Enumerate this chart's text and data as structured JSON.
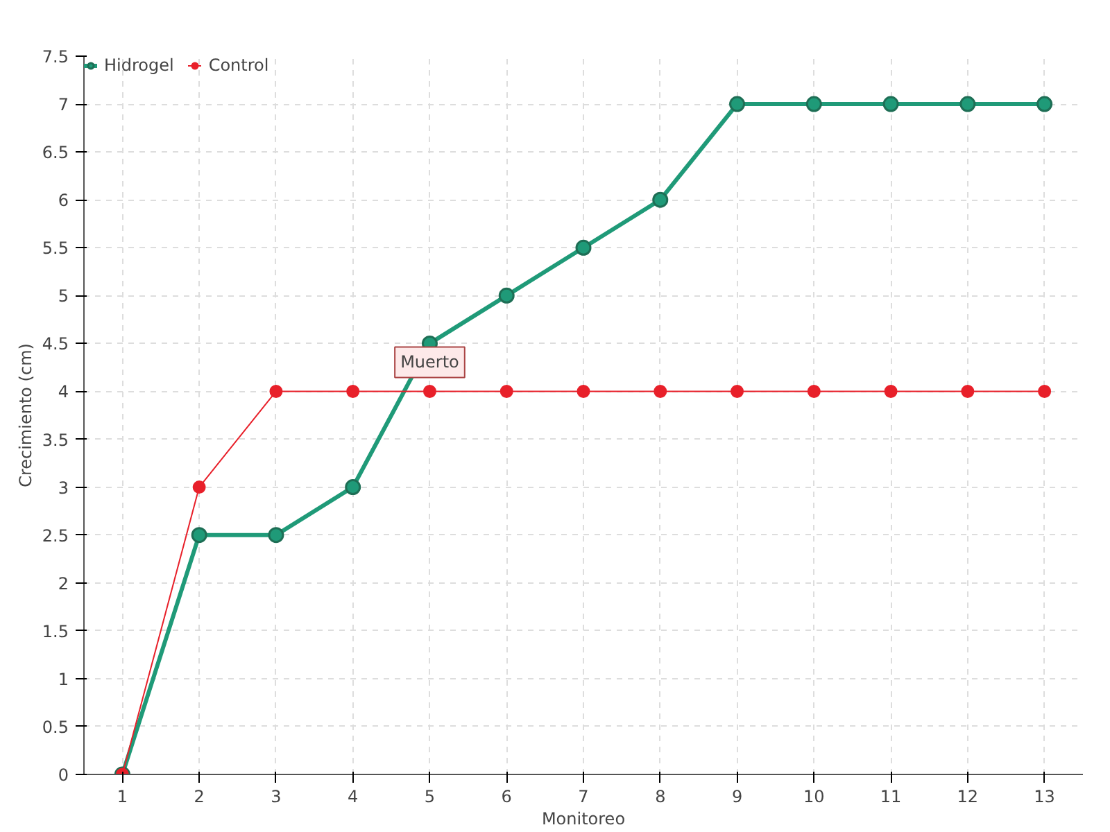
{
  "chart_data": {
    "type": "line",
    "xlabel": "Monitoreo",
    "ylabel": "Crecimiento (cm)",
    "x": [
      1,
      2,
      3,
      4,
      5,
      6,
      7,
      8,
      9,
      10,
      11,
      12,
      13
    ],
    "series": [
      {
        "name": "Hidrogel",
        "color": "#1f9a78",
        "values": [
          0,
          2.5,
          2.5,
          3,
          4.5,
          5,
          5.5,
          6,
          7,
          7,
          7,
          7,
          7
        ]
      },
      {
        "name": "Control",
        "color": "#e8202a",
        "values": [
          0,
          3,
          4,
          4,
          4,
          4,
          4,
          4,
          4,
          4,
          4,
          4,
          4
        ]
      }
    ],
    "xlim": [
      0.5,
      13.5
    ],
    "xticks": [
      1,
      2,
      3,
      4,
      5,
      6,
      7,
      8,
      9,
      10,
      11,
      12,
      13
    ],
    "ylim": [
      0,
      7.5
    ],
    "yticks": [
      0,
      0.5,
      1,
      1.5,
      2,
      2.5,
      3,
      3.5,
      4,
      4.5,
      5,
      5.5,
      6,
      6.5,
      7,
      7.5
    ],
    "annotations": [
      {
        "text": "Muerto",
        "x": 5,
        "y": 4
      }
    ],
    "grid": true,
    "legend": "top left",
    "marker": "circle",
    "line_style": "solid"
  }
}
